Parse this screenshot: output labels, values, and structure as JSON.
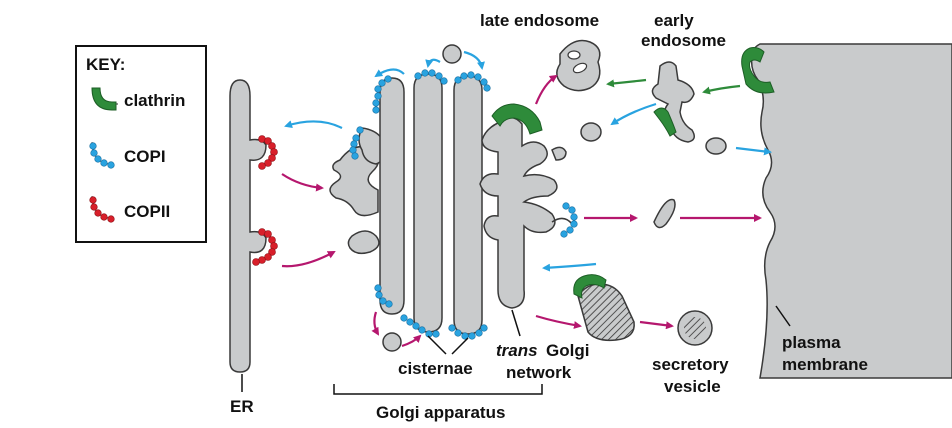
{
  "key": {
    "title": "KEY:",
    "items": [
      {
        "label": "clathrin",
        "icon": "clathrin-coat-icon",
        "color": "#2e8b3a"
      },
      {
        "label": "COPI",
        "icon": "copi-coat-icon",
        "color": "#29a3e0"
      },
      {
        "label": "COPII",
        "icon": "copii-coat-icon",
        "color": "#d81f2a"
      }
    ]
  },
  "labels": {
    "late_endosome": "late endosome",
    "early_endosome_1": "early",
    "early_endosome_2": "endosome",
    "er": "ER",
    "golgi_apparatus": "Golgi apparatus",
    "cisternae": "cisternae",
    "trans_italic": "trans",
    "golgi_word": "Golgi",
    "network": "network",
    "secretory": "secretory",
    "vesicle": "vesicle",
    "plasma": "plasma",
    "membrane": "membrane"
  },
  "colors": {
    "membrane_fill": "#c9cbcc",
    "outline": "#3a3a3a",
    "clathrin": "#2e8b3a",
    "copi": "#29a3e0",
    "copii": "#d81f2a",
    "secretory_arrow": "#b5176e",
    "retrograde_arrow": "#29a3e0",
    "endocytic_arrow": "#2e8b3a"
  }
}
